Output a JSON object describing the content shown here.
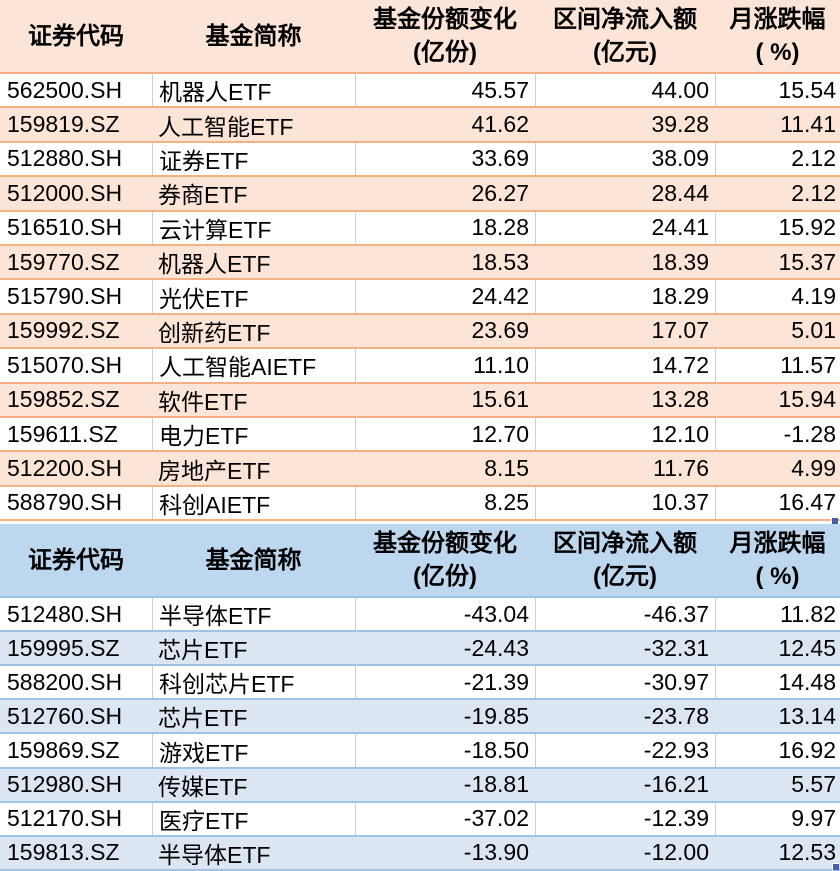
{
  "colors": {
    "grid_line": "#d0cece",
    "fill_handle": "#4a5da8",
    "text": "#000000"
  },
  "tables": [
    {
      "name": "fund-share-inflow-table",
      "theme": {
        "header_bg": "#fce4d6",
        "row_alt_bg": "#fce4d6",
        "row_border": "#f4b183"
      },
      "headers": [
        {
          "title": "证券代码",
          "unit": ""
        },
        {
          "title": "基金简称",
          "unit": ""
        },
        {
          "title": "基金份额变化",
          "unit": "(亿份)"
        },
        {
          "title": "区间净流入额",
          "unit": "(亿元)"
        },
        {
          "title": "月涨跌幅",
          "unit": "( %)"
        }
      ],
      "rows": [
        {
          "code": "562500.SH",
          "name": "机器人ETF",
          "share_change": "45.57",
          "net_inflow": "44.00",
          "monthly_pct": "15.54"
        },
        {
          "code": "159819.SZ",
          "name": "人工智能ETF",
          "share_change": "41.62",
          "net_inflow": "39.28",
          "monthly_pct": "11.41"
        },
        {
          "code": "512880.SH",
          "name": "证券ETF",
          "share_change": "33.69",
          "net_inflow": "38.09",
          "monthly_pct": "2.12"
        },
        {
          "code": "512000.SH",
          "name": "券商ETF",
          "share_change": "26.27",
          "net_inflow": "28.44",
          "monthly_pct": "2.12"
        },
        {
          "code": "516510.SH",
          "name": "云计算ETF",
          "share_change": "18.28",
          "net_inflow": "24.41",
          "monthly_pct": "15.92"
        },
        {
          "code": "159770.SZ",
          "name": "机器人ETF",
          "share_change": "18.53",
          "net_inflow": "18.39",
          "monthly_pct": "15.37"
        },
        {
          "code": "515790.SH",
          "name": "光伏ETF",
          "share_change": "24.42",
          "net_inflow": "18.29",
          "monthly_pct": "4.19"
        },
        {
          "code": "159992.SZ",
          "name": "创新药ETF",
          "share_change": "23.69",
          "net_inflow": "17.07",
          "monthly_pct": "5.01"
        },
        {
          "code": "515070.SH",
          "name": "人工智能AIETF",
          "share_change": "11.10",
          "net_inflow": "14.72",
          "monthly_pct": "11.57"
        },
        {
          "code": "159852.SZ",
          "name": "软件ETF",
          "share_change": "15.61",
          "net_inflow": "13.28",
          "monthly_pct": "15.94"
        },
        {
          "code": "159611.SZ",
          "name": "电力ETF",
          "share_change": "12.70",
          "net_inflow": "12.10",
          "monthly_pct": "-1.28"
        },
        {
          "code": "512200.SH",
          "name": "房地产ETF",
          "share_change": "8.15",
          "net_inflow": "11.76",
          "monthly_pct": "4.99"
        },
        {
          "code": "588790.SH",
          "name": "科创AIETF",
          "share_change": "8.25",
          "net_inflow": "10.37",
          "monthly_pct": "16.47"
        }
      ]
    },
    {
      "name": "fund-share-outflow-table",
      "theme": {
        "header_bg": "#bdd7ee",
        "row_alt_bg": "#dce6f2",
        "row_border": "#9dc3e6"
      },
      "headers": [
        {
          "title": "证券代码",
          "unit": ""
        },
        {
          "title": "基金简称",
          "unit": ""
        },
        {
          "title": "基金份额变化",
          "unit": "(亿份)"
        },
        {
          "title": "区间净流入额",
          "unit": "(亿元)"
        },
        {
          "title": "月涨跌幅",
          "unit": "( %)"
        }
      ],
      "rows": [
        {
          "code": "512480.SH",
          "name": "半导体ETF",
          "share_change": "-43.04",
          "net_inflow": "-46.37",
          "monthly_pct": "11.82"
        },
        {
          "code": "159995.SZ",
          "name": "芯片ETF",
          "share_change": "-24.43",
          "net_inflow": "-32.31",
          "monthly_pct": "12.45"
        },
        {
          "code": "588200.SH",
          "name": "科创芯片ETF",
          "share_change": "-21.39",
          "net_inflow": "-30.97",
          "monthly_pct": "14.48"
        },
        {
          "code": "512760.SH",
          "name": "芯片ETF",
          "share_change": "-19.85",
          "net_inflow": "-23.78",
          "monthly_pct": "13.14"
        },
        {
          "code": "159869.SZ",
          "name": "游戏ETF",
          "share_change": "-18.50",
          "net_inflow": "-22.93",
          "monthly_pct": "16.92"
        },
        {
          "code": "512980.SH",
          "name": "传媒ETF",
          "share_change": "-18.81",
          "net_inflow": "-16.21",
          "monthly_pct": "5.57"
        },
        {
          "code": "512170.SH",
          "name": "医疗ETF",
          "share_change": "-37.02",
          "net_inflow": "-12.39",
          "monthly_pct": "9.97"
        },
        {
          "code": "159813.SZ",
          "name": "半导体ETF",
          "share_change": "-13.90",
          "net_inflow": "-12.00",
          "monthly_pct": "12.53"
        }
      ]
    }
  ]
}
